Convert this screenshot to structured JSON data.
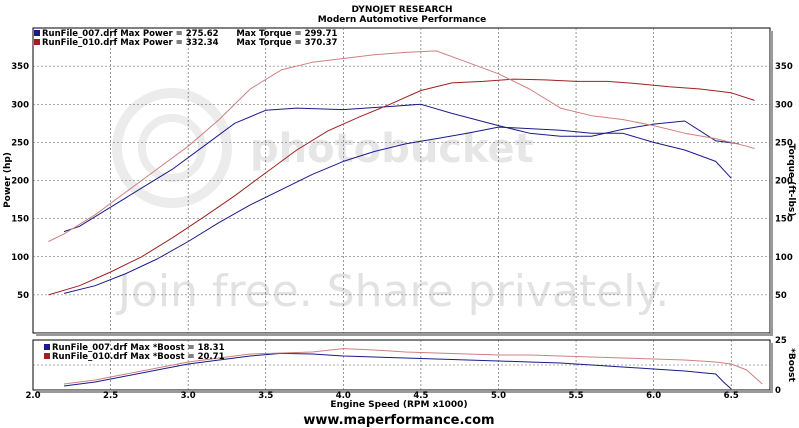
{
  "header": {
    "line1": "DYNOJET RESEARCH",
    "line2": "Modern Automotive Performance"
  },
  "footer": "www.maperformance.com",
  "watermark": {
    "line1": "Join free. Share privately.",
    "line2": "photobucket"
  },
  "colors": {
    "run007": "#1a1a8c",
    "run010": "#a02020",
    "run010_torque": "#d08080",
    "grid": "#555555",
    "frame": "#000000"
  },
  "chart_data": [
    {
      "type": "line",
      "title": "",
      "xlabel": "Engine Speed (RPM x1000)",
      "ylabel": "Power (hp)",
      "ylabel_right": "Torque (ft-lbs)",
      "xlim": [
        2.0,
        6.75
      ],
      "ylim": [
        0,
        400
      ],
      "xticks": [
        "2.0",
        "2.5",
        "3.0",
        "3.5",
        "4.0",
        "4.5",
        "5.0",
        "5.5",
        "6.0",
        "6.5"
      ],
      "yticks": [
        "50",
        "100",
        "150",
        "200",
        "250",
        "300",
        "350"
      ],
      "yticks_right": [
        "50",
        "100",
        "150",
        "200",
        "250",
        "300",
        "350"
      ],
      "grid": true,
      "legend": [
        "RunFile_007.drf Max Power = 275.62      Max Torque = 299.71",
        "RunFile_010.drf Max Power = 332.34      Max Torque = 370.37"
      ],
      "legend_position": "top-left",
      "series": [
        {
          "key": "p007",
          "x": [
            2.2,
            2.4,
            2.6,
            2.8,
            3.0,
            3.2,
            3.4,
            3.6,
            3.8,
            4.0,
            4.2,
            4.4,
            4.6,
            4.8,
            5.0,
            5.2,
            5.4,
            5.6,
            5.8,
            6.0,
            6.2,
            6.4,
            6.5
          ],
          "y": [
            52,
            62,
            78,
            97,
            120,
            145,
            168,
            188,
            208,
            225,
            238,
            248,
            255,
            262,
            270,
            268,
            266,
            262,
            262,
            250,
            240,
            225,
            203
          ]
        },
        {
          "key": "t007",
          "x": [
            2.2,
            2.3,
            2.5,
            2.7,
            2.9,
            3.1,
            3.3,
            3.5,
            3.7,
            4.0,
            4.3,
            4.5,
            4.7,
            5.0,
            5.2,
            5.4,
            5.6,
            5.8,
            6.0,
            6.2,
            6.4,
            6.55
          ],
          "y": [
            133,
            140,
            165,
            190,
            215,
            245,
            275,
            292,
            295,
            293,
            297,
            300,
            288,
            272,
            262,
            258,
            258,
            267,
            274,
            278,
            252,
            248
          ]
        },
        {
          "key": "p010",
          "x": [
            2.1,
            2.3,
            2.5,
            2.7,
            2.9,
            3.1,
            3.3,
            3.5,
            3.7,
            3.9,
            4.1,
            4.3,
            4.5,
            4.7,
            4.9,
            5.1,
            5.3,
            5.5,
            5.7,
            5.9,
            6.1,
            6.3,
            6.5,
            6.65
          ],
          "y": [
            50,
            62,
            80,
            100,
            125,
            152,
            180,
            210,
            240,
            265,
            283,
            300,
            318,
            328,
            330,
            333,
            332,
            330,
            330,
            327,
            323,
            320,
            315,
            305
          ]
        },
        {
          "key": "t010",
          "x": [
            2.1,
            2.2,
            2.4,
            2.6,
            2.8,
            3.0,
            3.2,
            3.4,
            3.6,
            3.8,
            4.0,
            4.2,
            4.4,
            4.6,
            4.8,
            5.0,
            5.2,
            5.4,
            5.6,
            5.8,
            6.0,
            6.2,
            6.4,
            6.6,
            6.65
          ],
          "y": [
            120,
            130,
            155,
            185,
            215,
            245,
            280,
            320,
            345,
            355,
            360,
            365,
            368,
            370,
            355,
            340,
            320,
            295,
            285,
            280,
            272,
            262,
            255,
            245,
            242
          ]
        }
      ]
    },
    {
      "type": "line",
      "title": "",
      "xlabel": "",
      "ylabel_right": "*Boost",
      "xlim": [
        2.0,
        6.75
      ],
      "ylim": [
        0,
        25
      ],
      "yticks_right": [
        "25",
        "0"
      ],
      "grid": true,
      "legend": [
        "RunFile_007.drf Max *Boost = 18.31",
        "RunFile_010.drf Max *Boost = 20.71"
      ],
      "legend_position": "top-left",
      "series": [
        {
          "key": "b007",
          "x": [
            2.2,
            2.4,
            2.6,
            2.8,
            3.0,
            3.2,
            3.4,
            3.6,
            3.8,
            4.0,
            4.2,
            4.4,
            4.6,
            4.8,
            5.0,
            5.2,
            5.4,
            5.6,
            5.8,
            6.0,
            6.2,
            6.4,
            6.45,
            6.5
          ],
          "y": [
            2,
            4,
            7,
            10,
            13,
            15,
            17,
            18.3,
            18,
            17,
            16.5,
            16,
            15.5,
            15,
            14.5,
            14,
            13.5,
            12.5,
            11.5,
            10.5,
            9.5,
            8,
            4,
            0.5
          ]
        },
        {
          "key": "b010",
          "x": [
            2.2,
            2.4,
            2.6,
            2.8,
            3.0,
            3.2,
            3.4,
            3.6,
            3.8,
            4.0,
            4.2,
            4.4,
            4.6,
            4.8,
            5.0,
            5.2,
            5.4,
            5.6,
            5.8,
            6.0,
            6.2,
            6.4,
            6.5,
            6.6,
            6.7
          ],
          "y": [
            3,
            5,
            8,
            11,
            14,
            16,
            18,
            18.5,
            19,
            20.7,
            20,
            19,
            18.5,
            18,
            17.5,
            17.5,
            17,
            16.5,
            16,
            15.5,
            15,
            14,
            13,
            10,
            3
          ]
        }
      ]
    }
  ]
}
